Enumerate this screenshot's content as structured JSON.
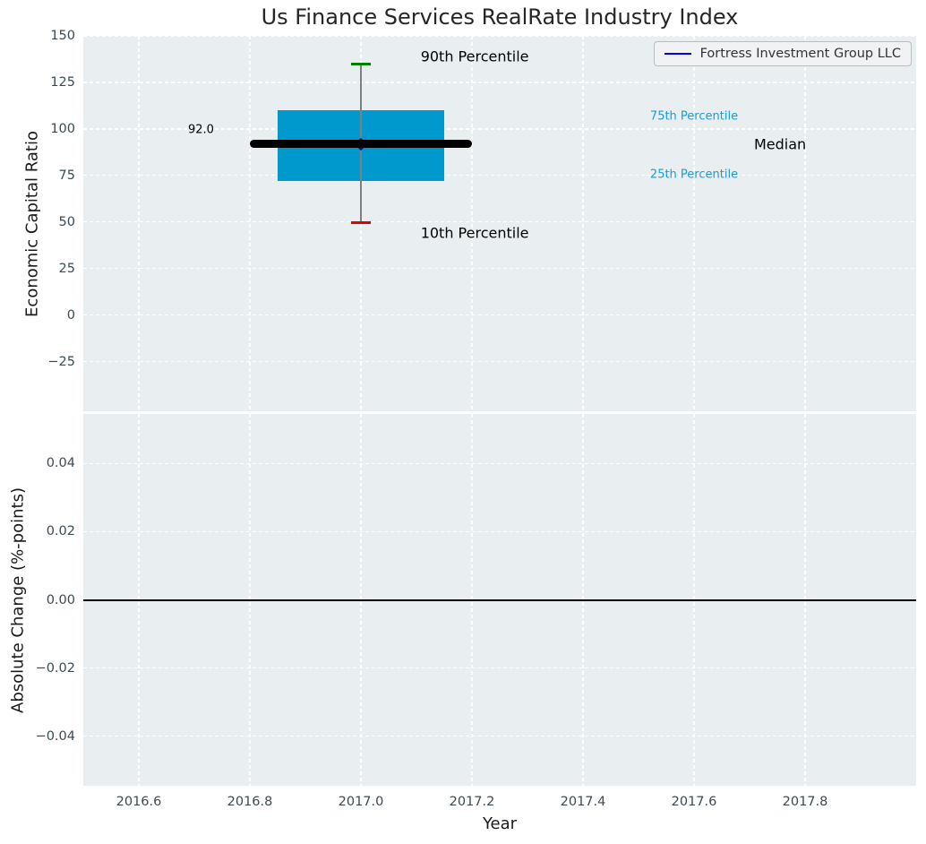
{
  "title": "Us Finance Services RealRate Industry Index",
  "legend": {
    "items": [
      {
        "label": "Fortress Investment Group LLC",
        "color": "#0000f0"
      }
    ]
  },
  "colors": {
    "plot_background": "#e9eef0",
    "grid": "#ffffff",
    "box_fill": "#0099cd",
    "median_line": "#000000",
    "whisker": "#7f7f7f",
    "p90_cap": "#008000",
    "p10_cap": "#e60000",
    "company_marker": "#0000bb",
    "tick_label": "#3b4a54",
    "percentile_label": "#1a9cd3",
    "zero_line": "#000000"
  },
  "chart_data": [
    {
      "type": "box",
      "title": "Us Finance Services RealRate Industry Index",
      "xlabel": "",
      "ylabel": "Economic Capital Ratio",
      "xlim": [
        2016.5,
        2018.0
      ],
      "ylim": [
        -51.6,
        150.0
      ],
      "grid": true,
      "legend_position": "upper right",
      "xticks": [
        {
          "v": 2016.6,
          "label": "2016.6"
        },
        {
          "v": 2016.8,
          "label": "2016.8"
        },
        {
          "v": 2017.0,
          "label": "2017.0"
        },
        {
          "v": 2017.2,
          "label": "2017.2"
        },
        {
          "v": 2017.4,
          "label": "2017.4"
        },
        {
          "v": 2017.6,
          "label": "2017.6"
        },
        {
          "v": 2017.8,
          "label": "2017.8"
        }
      ],
      "yticks": [
        {
          "v": 150,
          "label": "150"
        },
        {
          "v": 125,
          "label": "125"
        },
        {
          "v": 100,
          "label": "100"
        },
        {
          "v": 75,
          "label": "75"
        },
        {
          "v": 50,
          "label": "50"
        },
        {
          "v": 25,
          "label": "25"
        },
        {
          "v": 0,
          "label": "0"
        },
        {
          "v": -25,
          "label": "−25"
        }
      ],
      "box": {
        "x": 2017.0,
        "p10": 49.5,
        "p25": 72.0,
        "median": 92.0,
        "p75": 110.0,
        "p90": 135.0,
        "box_half_width": 0.15,
        "median_half_width": 0.2,
        "cap_half_width": 0.017,
        "company_point": {
          "name": "Fortress Investment Group LLC",
          "x": 2017.0,
          "y": 92.0
        }
      },
      "annotations": [
        {
          "text": "92.0",
          "x": 2016.712,
          "y": 99.5,
          "size": 13,
          "color": "#000000"
        },
        {
          "text": "90th Percentile",
          "x": 2017.205,
          "y": 139.0,
          "size": 16,
          "color": "#000000"
        },
        {
          "text": "10th Percentile",
          "x": 2017.205,
          "y": 44.0,
          "size": 16,
          "color": "#000000"
        },
        {
          "text": "75th Percentile",
          "x": 2017.6,
          "y": 106.5,
          "size": 13,
          "color": "#1a9cd3"
        },
        {
          "text": "Median",
          "x": 2017.755,
          "y": 92.0,
          "size": 16,
          "color": "#000000"
        },
        {
          "text": "25th Percentile",
          "x": 2017.6,
          "y": 75.5,
          "size": 13,
          "color": "#1a9cd3"
        }
      ]
    },
    {
      "type": "line",
      "xlabel": "Year",
      "ylabel": "Absolute Change (%-points)",
      "xlim": [
        2016.5,
        2018.0
      ],
      "ylim": [
        -0.0545,
        0.0545
      ],
      "grid": true,
      "zero_line": 0.0,
      "series": [],
      "xticks": [
        {
          "v": 2016.6,
          "label": "2016.6"
        },
        {
          "v": 2016.8,
          "label": "2016.8"
        },
        {
          "v": 2017.0,
          "label": "2017.0"
        },
        {
          "v": 2017.2,
          "label": "2017.2"
        },
        {
          "v": 2017.4,
          "label": "2017.4"
        },
        {
          "v": 2017.6,
          "label": "2017.6"
        },
        {
          "v": 2017.8,
          "label": "2017.8"
        }
      ],
      "yticks": [
        {
          "v": 0.04,
          "label": "0.04"
        },
        {
          "v": 0.02,
          "label": "0.02"
        },
        {
          "v": 0.0,
          "label": "0.00"
        },
        {
          "v": -0.02,
          "label": "−0.02"
        },
        {
          "v": -0.04,
          "label": "−0.04"
        }
      ]
    }
  ]
}
